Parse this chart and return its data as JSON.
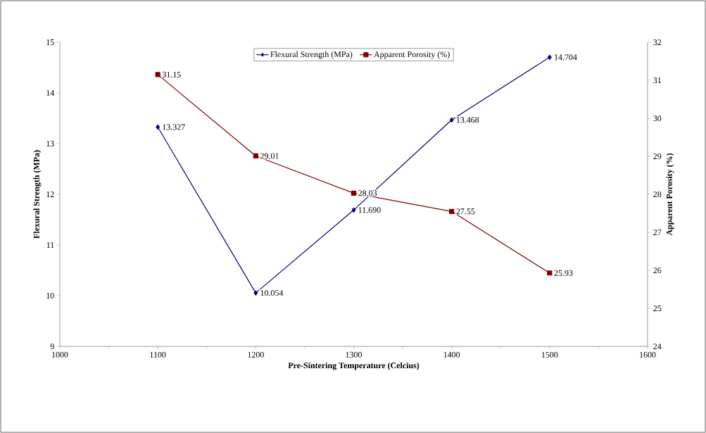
{
  "chart_data": {
    "type": "line",
    "xlabel": "Pre-Sintering Temperature (Celcius)",
    "ylabel": "Flexural Strength (MPa)",
    "y2label": "Apparent Porosity (%)",
    "x": [
      1100,
      1200,
      1300,
      1400,
      1500
    ],
    "series": [
      {
        "name": "Flexural Strength (MPa)",
        "color": "#000080",
        "marker": "diamond",
        "values": [
          13.327,
          10.054,
          11.69,
          13.468,
          14.704
        ],
        "value_labels": [
          "13.327",
          "10.054",
          "11.690",
          "13.468",
          "14.704"
        ]
      },
      {
        "name": "Apparent Porosity (%)",
        "color": "#800000",
        "marker": "square",
        "axis": "y2",
        "values": [
          31.15,
          29.01,
          28.03,
          27.55,
          25.93
        ],
        "value_labels": [
          "31.15",
          "29.01",
          "28.03",
          "27.55",
          "25.93"
        ]
      }
    ],
    "xlim": [
      1000,
      1600
    ],
    "xticks": [
      1000,
      1100,
      1200,
      1300,
      1400,
      1500,
      1600
    ],
    "ylim": [
      9,
      15
    ],
    "yticks": [
      9,
      10,
      11,
      12,
      13,
      14,
      15
    ],
    "y2lim": [
      24,
      32
    ],
    "y2ticks": [
      24,
      25,
      26,
      27,
      28,
      29,
      30,
      31,
      32
    ],
    "legend": "top",
    "grid": false
  }
}
